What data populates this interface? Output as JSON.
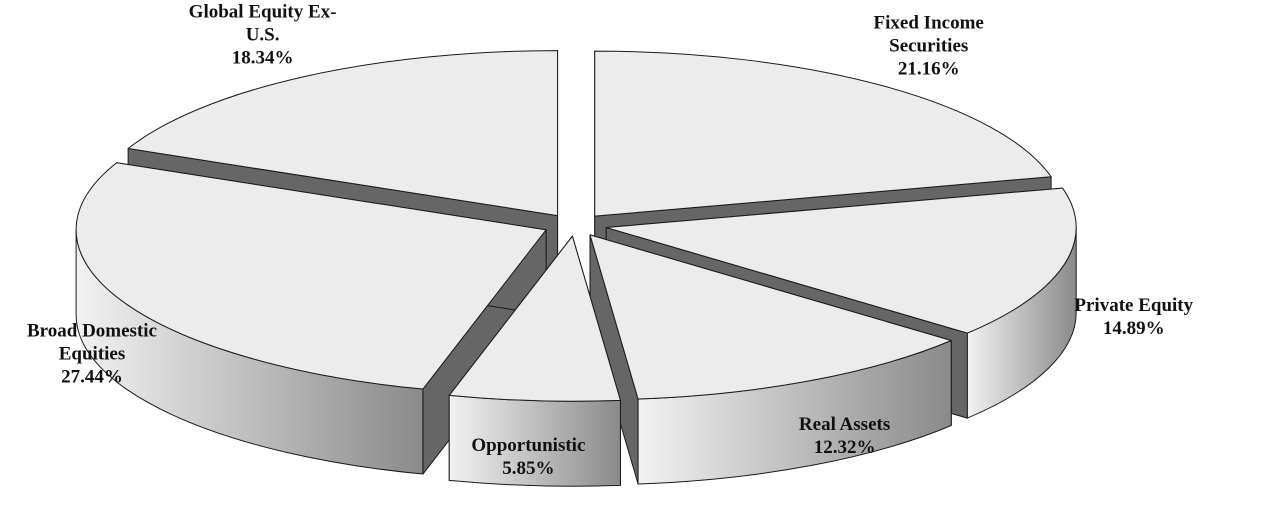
{
  "chart_data": {
    "type": "pie3d",
    "categories": [
      "Fixed Income Securities",
      "Private Equity",
      "Real Assets",
      "Opportunistic",
      "Broad Domestic Equities",
      "Global Equity Ex-U.S."
    ],
    "values": [
      21.16,
      14.89,
      12.32,
      5.85,
      27.44,
      18.34
    ],
    "value_labels": [
      "21.16%",
      "14.89%",
      "12.32%",
      "5.85%",
      "27.44%",
      "18.34%"
    ],
    "color": "#ececec"
  }
}
